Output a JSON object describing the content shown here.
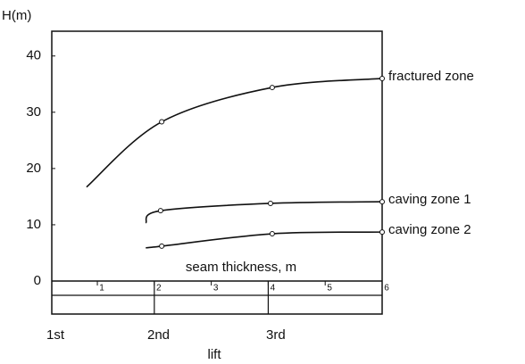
{
  "chart_data": {
    "type": "line",
    "y_label": "H(m)",
    "x_label": "seam thickness, m",
    "lift_label": "lift",
    "lift_categories": [
      "1st",
      "2nd",
      "3rd"
    ],
    "xlim": [
      0.2,
      6
    ],
    "xticks": [
      1,
      2,
      3,
      4,
      5,
      6
    ],
    "ylim": [
      0,
      44.4
    ],
    "yticks": [
      0,
      10,
      20,
      30,
      40
    ],
    "series": [
      {
        "name": "fractured zone",
        "color": "#111111",
        "x": [
          0.81,
          2.13,
          4.07,
          6
        ],
        "values": [
          16.7,
          28.3,
          34.4,
          36
        ]
      },
      {
        "name": "caving zone 1",
        "color": "#111111",
        "x": [
          1.85,
          2.11,
          4.04,
          6
        ],
        "values": [
          10.3,
          12.5,
          13.8,
          14.1
        ]
      },
      {
        "name": "caving zone 2",
        "color": "#111111",
        "x": [
          1.85,
          2.13,
          4.07,
          6
        ],
        "values": [
          5.9,
          6.2,
          8.4,
          8.7
        ]
      }
    ]
  }
}
